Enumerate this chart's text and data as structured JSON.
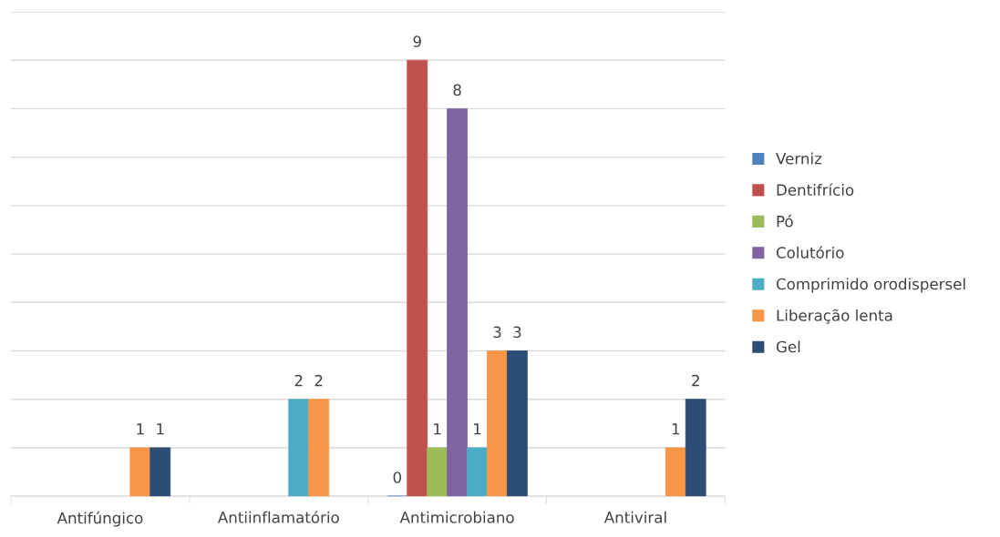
{
  "chart_data": {
    "type": "bar",
    "categories": [
      "Antifúngico",
      "Antiinflamatório",
      "Antimicrobiano",
      "Antiviral"
    ],
    "series": [
      {
        "name": "Verniz",
        "color": "#4f81bd",
        "values": [
          null,
          null,
          0,
          null
        ]
      },
      {
        "name": "Dentifrício",
        "color": "#c0504d",
        "values": [
          null,
          null,
          9,
          null
        ]
      },
      {
        "name": "Pó",
        "color": "#9bbb59",
        "values": [
          null,
          null,
          1,
          null
        ]
      },
      {
        "name": "Colutório",
        "color": "#8064a2",
        "values": [
          null,
          null,
          8,
          null
        ]
      },
      {
        "name": "Comprimido orodispersel",
        "color": "#4bacc6",
        "values": [
          null,
          2,
          1,
          null
        ]
      },
      {
        "name": "Liberação lenta",
        "color": "#f79646",
        "values": [
          1,
          2,
          3,
          1
        ]
      },
      {
        "name": "Gel",
        "color": "#2c4d75",
        "values": [
          1,
          null,
          3,
          2
        ]
      }
    ],
    "ylim": [
      0,
      10
    ],
    "yticks": [
      {
        "value": 0,
        "label": null
      },
      {
        "value": 1,
        "label": null
      },
      {
        "value": 2,
        "label": null
      },
      {
        "value": 3,
        "label": null
      },
      {
        "value": 4,
        "label": null
      },
      {
        "value": 5,
        "label": null
      },
      {
        "value": 6,
        "label": null
      },
      {
        "value": 7,
        "label": null
      },
      {
        "value": 8,
        "label": null
      },
      {
        "value": 9,
        "label": null
      },
      {
        "value": 10,
        "label": null
      }
    ],
    "tick_labels": "x",
    "grid": "y",
    "legend": "right",
    "data_labels": true
  }
}
